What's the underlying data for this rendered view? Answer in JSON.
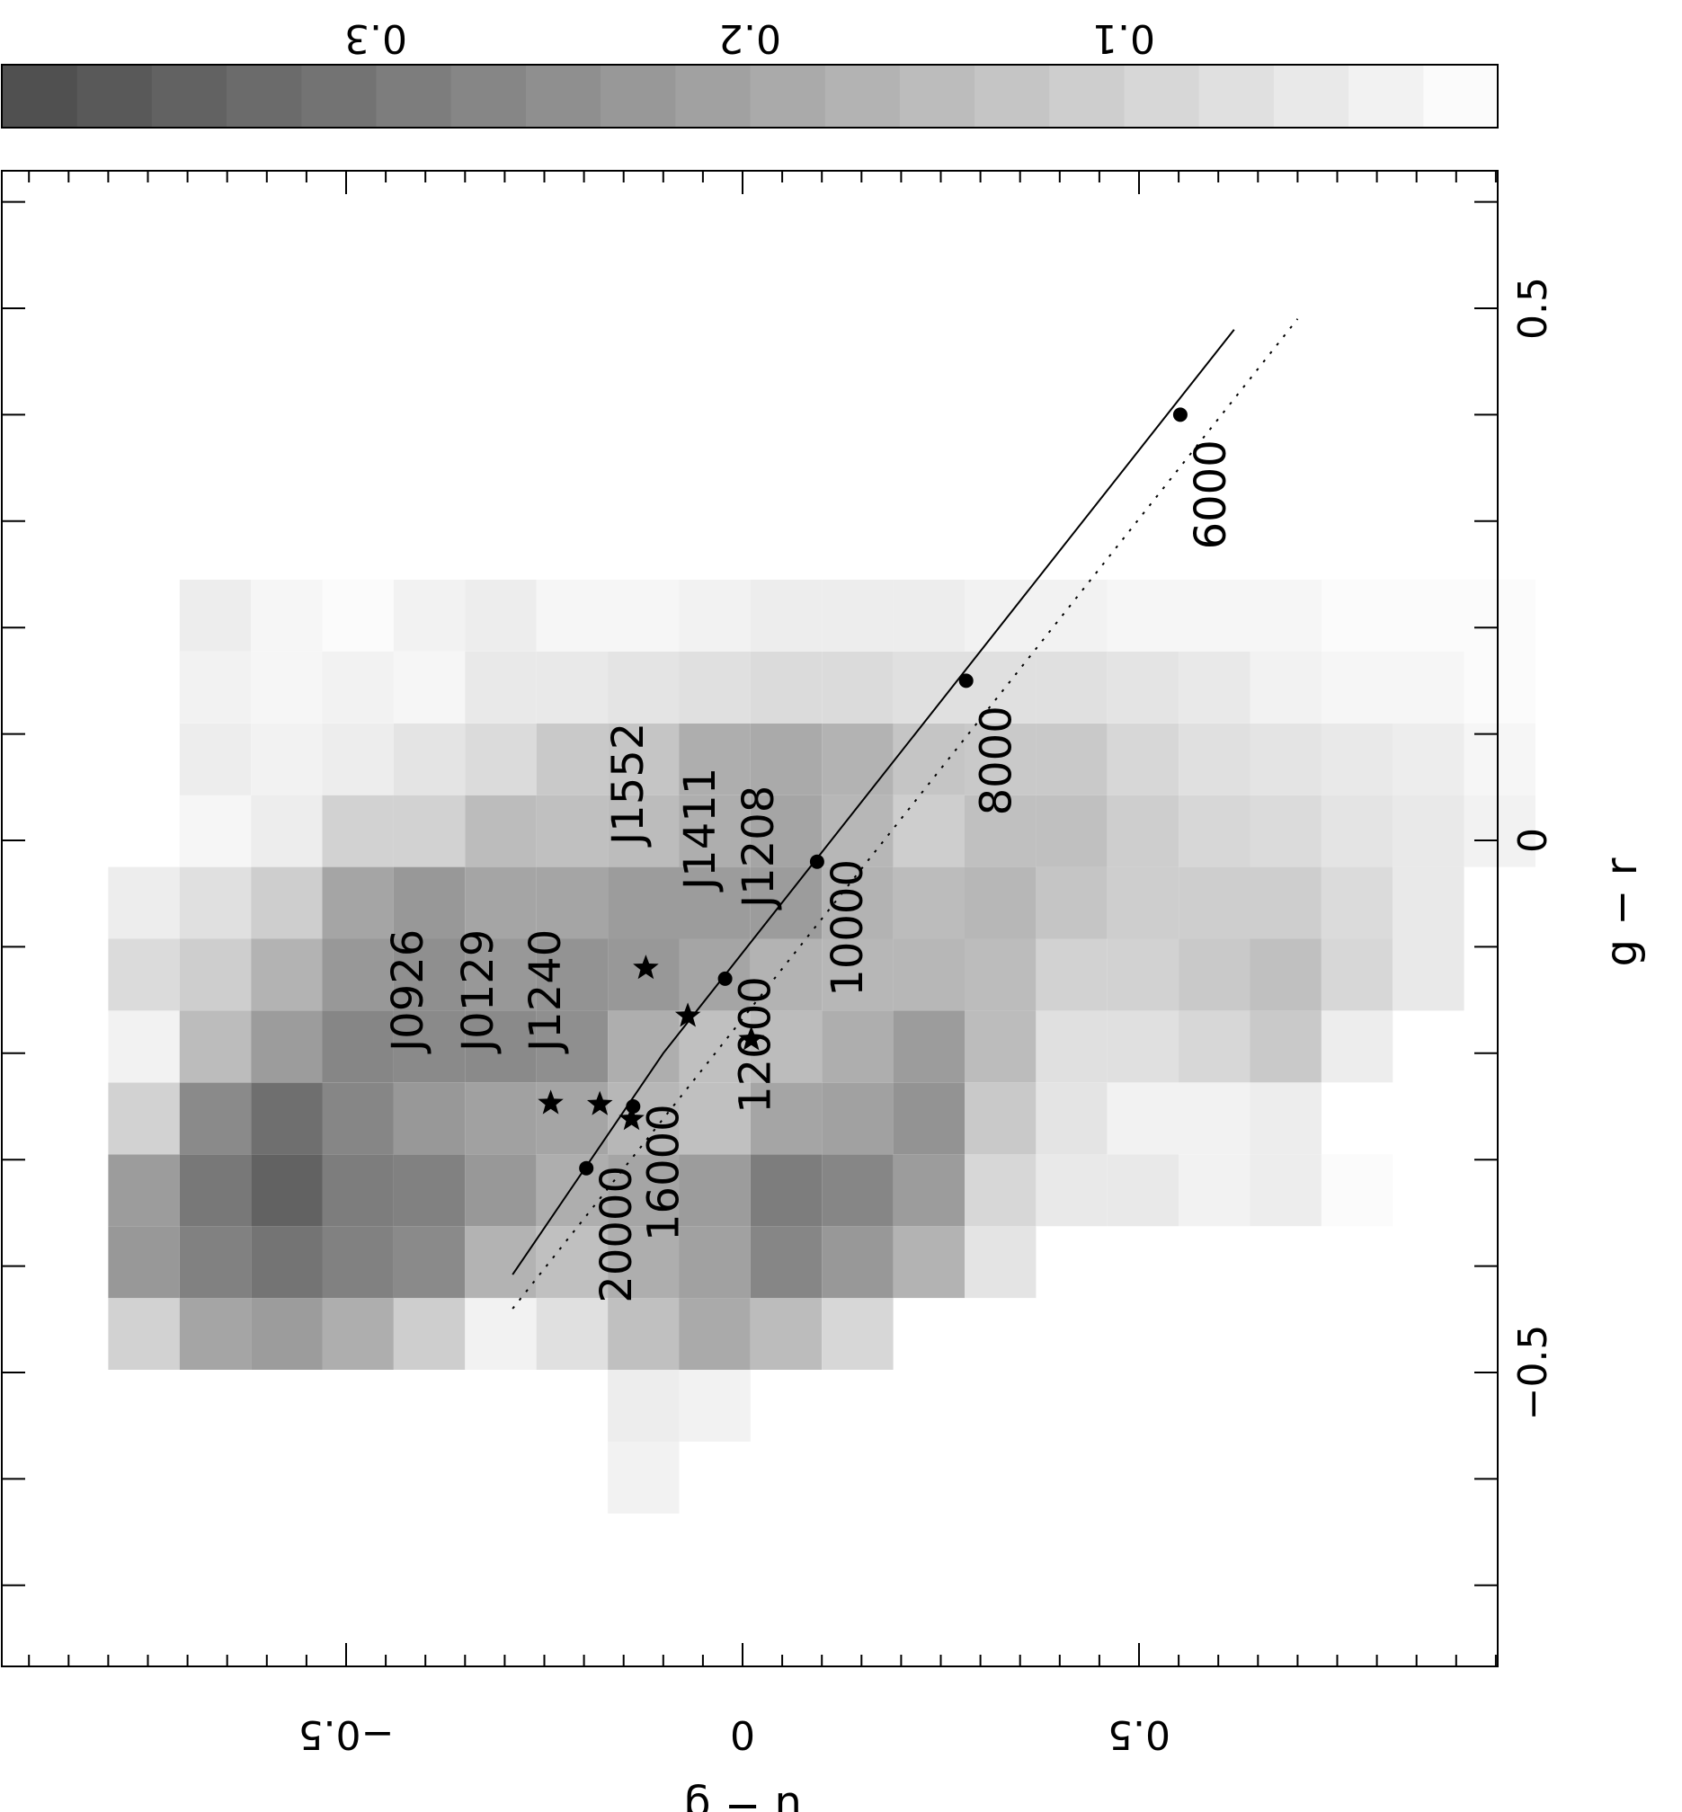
{
  "chart_data": {
    "type": "heatmap",
    "orientation_note": "figure rotated 90 degrees counter-clockwise",
    "xlabel": "g − r",
    "ylabel": "u − g",
    "xlim": [
      -0.7,
      0.7
    ],
    "ylim": [
      -0.9,
      0.95
    ],
    "x_ticks": [
      -0.5,
      0,
      0.5
    ],
    "x_tick_labels": [
      "−0.5",
      "0",
      "0.5"
    ],
    "y_ticks": [
      -0.5,
      0,
      0.5
    ],
    "y_tick_labels": [
      "−0.5",
      "0",
      "0.5"
    ],
    "colorbar": {
      "range": [
        0.0,
        0.4
      ],
      "ticks": [
        0.1,
        0.2,
        0.3
      ],
      "tick_labels": [
        "0.1",
        "0.2",
        "0.3"
      ]
    },
    "heatmap": {
      "x_bins_start": -0.7,
      "x_bin_width": 0.0675,
      "y_bins_start": -0.8,
      "y_bin_width": 0.09,
      "rows": [
        [
          0,
          0,
          0,
          0,
          0,
          0,
          0,
          0,
          0,
          0,
          0,
          0,
          0,
          0,
          0,
          0,
          0,
          0,
          0,
          0,
          0
        ],
        [
          0,
          0,
          0,
          0,
          0,
          0,
          0,
          0.03,
          0,
          0,
          0,
          0,
          0,
          0,
          0,
          0,
          0,
          0,
          0,
          0,
          0
        ],
        [
          0,
          0,
          0,
          0,
          0,
          0,
          0,
          0.04,
          0.03,
          0,
          0,
          0,
          0,
          0,
          0,
          0,
          0,
          0,
          0,
          0,
          0
        ],
        [
          0.1,
          0.2,
          0.22,
          0.18,
          0.11,
          0.03,
          0.07,
          0.14,
          0.19,
          0.15,
          0.09,
          0,
          0,
          0,
          0,
          0,
          0,
          0,
          0,
          0,
          0
        ],
        [
          0.23,
          0.28,
          0.31,
          0.28,
          0.26,
          0.17,
          0.14,
          0.18,
          0.21,
          0.27,
          0.23,
          0.17,
          0.06,
          0,
          0,
          0,
          0,
          0,
          0,
          0,
          0
        ],
        [
          0.22,
          0.3,
          0.35,
          0.29,
          0.28,
          0.23,
          0.18,
          0.2,
          0.22,
          0.29,
          0.27,
          0.22,
          0.09,
          0.05,
          0.05,
          0.03,
          0.04,
          0.01,
          0,
          0,
          0
        ],
        [
          0.1,
          0.26,
          0.32,
          0.27,
          0.23,
          0.21,
          0.2,
          0.16,
          0.14,
          0.2,
          0.21,
          0.24,
          0.12,
          0.06,
          0.03,
          0.03,
          0.04,
          0,
          0,
          0,
          0
        ],
        [
          0.03,
          0.15,
          0.22,
          0.27,
          0.26,
          0.26,
          0.25,
          0.18,
          0.14,
          0.15,
          0.18,
          0.22,
          0.15,
          0.07,
          0.07,
          0.09,
          0.12,
          0.04,
          0,
          0,
          0
        ],
        [
          0.08,
          0.11,
          0.17,
          0.23,
          0.25,
          0.23,
          0.24,
          0.23,
          0.2,
          0.17,
          0.16,
          0.16,
          0.15,
          0.1,
          0.1,
          0.12,
          0.14,
          0.09,
          0.05,
          0,
          0
        ],
        [
          0.04,
          0.07,
          0.11,
          0.2,
          0.23,
          0.2,
          0.2,
          0.22,
          0.22,
          0.22,
          0.17,
          0.15,
          0.16,
          0.13,
          0.11,
          0.11,
          0.11,
          0.08,
          0.05,
          0,
          0
        ],
        [
          0,
          0.02,
          0.04,
          0.1,
          0.1,
          0.15,
          0.14,
          0.15,
          0.18,
          0.2,
          0.16,
          0.11,
          0.14,
          0.14,
          0.11,
          0.09,
          0.08,
          0.06,
          0.05,
          0.03,
          0
        ],
        [
          0,
          0.04,
          0.03,
          0.04,
          0.06,
          0.08,
          0.12,
          0.13,
          0.18,
          0.19,
          0.17,
          0.13,
          0.12,
          0.12,
          0.09,
          0.07,
          0.06,
          0.05,
          0.04,
          0.02,
          0
        ],
        [
          0,
          0.03,
          0.02,
          0.03,
          0.02,
          0.05,
          0.05,
          0.06,
          0.07,
          0.08,
          0.08,
          0.07,
          0.07,
          0.07,
          0.06,
          0.05,
          0.03,
          0.02,
          0.02,
          0.01,
          0
        ],
        [
          0,
          0.04,
          0.02,
          0.01,
          0.03,
          0.04,
          0.02,
          0.02,
          0.03,
          0.04,
          0.04,
          0.04,
          0.03,
          0.03,
          0.02,
          0.02,
          0.02,
          0.01,
          0.01,
          0.01,
          0
        ],
        [
          0,
          0,
          0,
          0,
          0,
          0,
          0,
          0,
          0,
          0,
          0,
          0,
          0,
          0,
          0,
          0,
          0,
          0,
          0,
          0,
          0
        ]
      ]
    },
    "series": [
      {
        "name": "",
        "style": "solid",
        "points": [
          {
            "x": -0.408,
            "y": -0.29
          },
          {
            "x": -0.2,
            "y": -0.1
          },
          {
            "x": 0.48,
            "y": 0.62
          }
        ],
        "markers": [
          {
            "x": -0.308,
            "y": -0.197,
            "label": "20000"
          },
          {
            "x": -0.25,
            "y": -0.138,
            "label": "16000"
          },
          {
            "x": -0.13,
            "y": -0.022,
            "label": "12000"
          },
          {
            "x": -0.02,
            "y": 0.094,
            "label": "10000"
          },
          {
            "x": 0.15,
            "y": 0.282,
            "label": "8000"
          },
          {
            "x": 0.4,
            "y": 0.552,
            "label": "6000"
          }
        ]
      },
      {
        "name": "",
        "style": "dotted",
        "points": [
          {
            "x": -0.44,
            "y": -0.29
          },
          {
            "x": 0.49,
            "y": 0.7
          }
        ]
      }
    ],
    "stars": [
      {
        "x": -0.247,
        "y": -0.242,
        "label": "J0926"
      },
      {
        "x": -0.248,
        "y": -0.18,
        "label": "J0129"
      },
      {
        "x": -0.262,
        "y": -0.14,
        "label": "J1240"
      },
      {
        "x": -0.12,
        "y": -0.122,
        "label": "J1552"
      },
      {
        "x": -0.165,
        "y": -0.069,
        "label": "J1411"
      },
      {
        "x": -0.187,
        "y": 0.011,
        "label": "J1208"
      }
    ]
  }
}
